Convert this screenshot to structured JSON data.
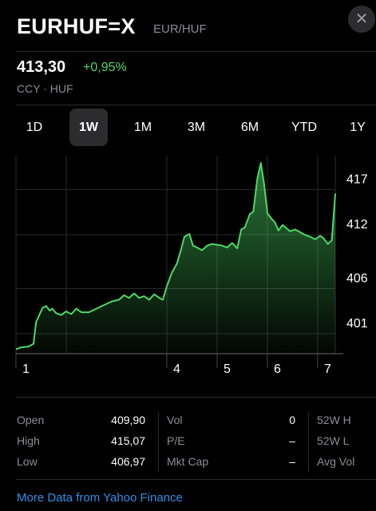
{
  "header": {
    "symbol": "EURHUF=X",
    "pair": "EUR/HUF",
    "close_glyph": "✕"
  },
  "quote": {
    "price": "413,30",
    "change": "+0,95%",
    "sub": "CCY · HUF"
  },
  "tabs": [
    {
      "label": "1D",
      "active": false
    },
    {
      "label": "1W",
      "active": true
    },
    {
      "label": "1M",
      "active": false
    },
    {
      "label": "3M",
      "active": false
    },
    {
      "label": "6M",
      "active": false
    },
    {
      "label": "YTD",
      "active": false
    },
    {
      "label": "1Y",
      "active": false
    }
  ],
  "chart_data": {
    "type": "area",
    "ylim": [
      397,
      419
    ],
    "y_ticks": [
      "417",
      "412",
      "406",
      "401"
    ],
    "y_tick_values": [
      417,
      412,
      406,
      401
    ],
    "x_ticks": [
      "1",
      "4",
      "5",
      "6",
      "7"
    ],
    "x_tick_values": [
      1,
      4,
      5,
      6,
      7
    ],
    "xlim": [
      1,
      7.35
    ],
    "color": "#4cd964",
    "points": [
      [
        1.0,
        397.5
      ],
      [
        1.1,
        397.7
      ],
      [
        1.25,
        397.8
      ],
      [
        1.35,
        398.1
      ],
      [
        1.4,
        400.5
      ],
      [
        1.48,
        401.5
      ],
      [
        1.53,
        402.1
      ],
      [
        1.6,
        402.3
      ],
      [
        1.67,
        401.8
      ],
      [
        1.72,
        402.0
      ],
      [
        1.8,
        401.5
      ],
      [
        1.9,
        401.3
      ],
      [
        2.0,
        401.7
      ],
      [
        2.1,
        401.4
      ],
      [
        2.2,
        402.0
      ],
      [
        2.3,
        401.6
      ],
      [
        2.45,
        401.6
      ],
      [
        2.6,
        402.0
      ],
      [
        2.75,
        402.4
      ],
      [
        2.9,
        402.8
      ],
      [
        3.05,
        403.0
      ],
      [
        3.15,
        403.5
      ],
      [
        3.25,
        403.2
      ],
      [
        3.35,
        403.7
      ],
      [
        3.45,
        403.2
      ],
      [
        3.55,
        403.4
      ],
      [
        3.65,
        403.0
      ],
      [
        3.75,
        403.6
      ],
      [
        3.85,
        403.2
      ],
      [
        3.92,
        403.0
      ],
      [
        4.0,
        404.5
      ],
      [
        4.1,
        406.0
      ],
      [
        4.2,
        407.0
      ],
      [
        4.28,
        408.5
      ],
      [
        4.35,
        410.0
      ],
      [
        4.45,
        410.3
      ],
      [
        4.52,
        409.0
      ],
      [
        4.6,
        408.8
      ],
      [
        4.7,
        408.5
      ],
      [
        4.8,
        409.0
      ],
      [
        4.9,
        409.2
      ],
      [
        5.0,
        409.1
      ],
      [
        5.1,
        409.0
      ],
      [
        5.2,
        408.8
      ],
      [
        5.3,
        409.3
      ],
      [
        5.4,
        408.7
      ],
      [
        5.48,
        410.8
      ],
      [
        5.55,
        411.0
      ],
      [
        5.65,
        412.5
      ],
      [
        5.72,
        412.8
      ],
      [
        5.8,
        416.5
      ],
      [
        5.87,
        418.2
      ],
      [
        5.93,
        416.0
      ],
      [
        6.0,
        412.6
      ],
      [
        6.08,
        412.0
      ],
      [
        6.15,
        411.6
      ],
      [
        6.22,
        410.7
      ],
      [
        6.3,
        411.3
      ],
      [
        6.37,
        411.0
      ],
      [
        6.45,
        410.6
      ],
      [
        6.55,
        410.8
      ],
      [
        6.65,
        410.5
      ],
      [
        6.75,
        410.2
      ],
      [
        6.85,
        410.0
      ],
      [
        6.95,
        409.7
      ],
      [
        7.05,
        410.1
      ],
      [
        7.12,
        409.8
      ],
      [
        7.2,
        409.2
      ],
      [
        7.28,
        409.6
      ],
      [
        7.35,
        414.8
      ]
    ]
  },
  "stats": {
    "open_label": "Open",
    "open_value": "409,90",
    "high_label": "High",
    "high_value": "415,07",
    "low_label": "Low",
    "low_value": "406,97",
    "vol_label": "Vol",
    "vol_value": "0",
    "pe_label": "P/E",
    "pe_value": "–",
    "mktcap_label": "Mkt Cap",
    "mktcap_value": "–",
    "w52h_label": "52W H",
    "w52l_label": "52W L",
    "avgvol_label": "Avg Vol"
  },
  "footer": {
    "more_link": "More Data from Yahoo Finance"
  }
}
